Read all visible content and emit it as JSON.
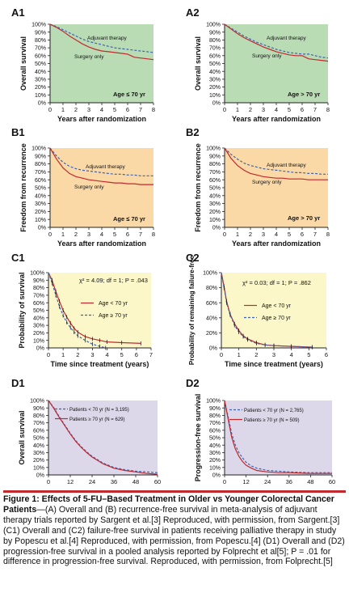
{
  "figure": {
    "caption_title": "Figure 1: Effects of 5-FU–Based Treatment in Older vs Younger Colorectal Cancer Patients",
    "caption_body": "—(A) Overall and (B) recurrence-free survival in meta-analysis of adjuvant therapy trials reported by Sargent et al.[3] Reproduced, with permission, from Sargent.[3] (C1) Overall and (C2) failure-free survival in patients receiving palliative therapy in study by Popescu et al.[4] Reproduced, with permission, from Popescu.[4] (D1) Overall and (D2) progression-free survival in a pooled analysis reported by Folprecht et al[5]; P = .01 for difference in progression-free survival. Reproduced, with permission, from Folprecht.[5]"
  },
  "colors": {
    "red": "#c3282d",
    "blue": "#3d64b4",
    "green": "#b9dcb4",
    "orange": "#fbd9a6",
    "yellow": "#fbf7c9",
    "lavender": "#dcd7e9"
  },
  "chart_data": [
    {
      "id": "A1",
      "type": "line",
      "panel_label": "A1",
      "bg": "green",
      "ylabel": "Overall survival",
      "xlabel": "Years after randomization",
      "xlim": [
        0,
        8
      ],
      "ylim": [
        0,
        100
      ],
      "xticks": [
        0,
        1,
        2,
        3,
        4,
        5,
        6,
        7,
        8
      ],
      "yticks": [
        0,
        10,
        20,
        30,
        40,
        50,
        60,
        70,
        80,
        90,
        100
      ],
      "ytick_suffix": "%",
      "annotation": "Age ≤ 70 yr",
      "series": [
        {
          "name": "Adjuvant therapy",
          "color": "blue",
          "dash": true,
          "x": [
            0,
            0.5,
            1,
            1.5,
            2,
            2.5,
            3,
            3.5,
            4,
            4.5,
            5,
            5.5,
            6,
            6.5,
            7,
            7.5,
            8
          ],
          "y": [
            100,
            97,
            93,
            89,
            85,
            81,
            78,
            76,
            74,
            72,
            70,
            69,
            68,
            67,
            66,
            65,
            64
          ]
        },
        {
          "name": "Surgery only",
          "color": "red",
          "dash": false,
          "x": [
            0,
            0.5,
            1,
            1.5,
            2,
            2.5,
            3,
            3.5,
            4,
            4.5,
            5,
            5.5,
            6,
            6.5,
            7,
            7.5,
            8
          ],
          "y": [
            100,
            96,
            91,
            85,
            80,
            75,
            71,
            68,
            66,
            65,
            64,
            63,
            62,
            58,
            57,
            56,
            55
          ]
        }
      ]
    },
    {
      "id": "A2",
      "type": "line",
      "panel_label": "A2",
      "bg": "green",
      "ylabel": "Overall survival",
      "xlabel": "Years after randomization",
      "xlim": [
        0,
        8
      ],
      "ylim": [
        0,
        100
      ],
      "xticks": [
        0,
        1,
        2,
        3,
        4,
        5,
        6,
        7,
        8
      ],
      "yticks": [
        0,
        10,
        20,
        30,
        40,
        50,
        60,
        70,
        80,
        90,
        100
      ],
      "ytick_suffix": "%",
      "annotation": "Age > 70 yr",
      "series": [
        {
          "name": "Adjuvant therapy",
          "color": "blue",
          "dash": true,
          "x": [
            0,
            0.5,
            1,
            1.5,
            2,
            2.5,
            3,
            3.5,
            4,
            4.5,
            5,
            5.5,
            6,
            6.5,
            7,
            7.5,
            8
          ],
          "y": [
            100,
            95,
            90,
            85,
            81,
            77,
            74,
            71,
            68,
            66,
            64,
            63,
            62,
            62,
            60,
            58,
            57
          ]
        },
        {
          "name": "Surgery only",
          "color": "red",
          "dash": false,
          "x": [
            0,
            0.5,
            1,
            1.5,
            2,
            2.5,
            3,
            3.5,
            4,
            4.5,
            5,
            5.5,
            6,
            6.5,
            7,
            7.5,
            8
          ],
          "y": [
            100,
            94,
            88,
            83,
            79,
            75,
            71,
            68,
            65,
            63,
            61,
            60,
            60,
            56,
            55,
            54,
            53
          ]
        }
      ]
    },
    {
      "id": "B1",
      "type": "line",
      "panel_label": "B1",
      "bg": "orange",
      "ylabel": "Freedom from recurrence",
      "xlabel": "Years after randomization",
      "xlim": [
        0,
        8
      ],
      "ylim": [
        0,
        100
      ],
      "xticks": [
        0,
        1,
        2,
        3,
        4,
        5,
        6,
        7,
        8
      ],
      "yticks": [
        0,
        10,
        20,
        30,
        40,
        50,
        60,
        70,
        80,
        90,
        100
      ],
      "ytick_suffix": "%",
      "annotation": "Age ≤ 70 yr",
      "series": [
        {
          "name": "Adjuvant therapy",
          "color": "blue",
          "dash": true,
          "x": [
            0,
            0.5,
            1,
            1.5,
            2,
            2.5,
            3,
            3.5,
            4,
            4.5,
            5,
            5.5,
            6,
            6.5,
            7,
            7.5,
            8
          ],
          "y": [
            100,
            90,
            82,
            77,
            74,
            72,
            71,
            70,
            69,
            68,
            67,
            67,
            66,
            66,
            65,
            65,
            65
          ]
        },
        {
          "name": "Surgery only",
          "color": "red",
          "dash": false,
          "x": [
            0,
            0.5,
            1,
            1.5,
            2,
            2.5,
            3,
            3.5,
            4,
            4.5,
            5,
            5.5,
            6,
            6.5,
            7,
            7.5,
            8
          ],
          "y": [
            100,
            86,
            75,
            68,
            64,
            62,
            60,
            59,
            58,
            57,
            56,
            56,
            55,
            55,
            54,
            54,
            54
          ]
        }
      ]
    },
    {
      "id": "B2",
      "type": "line",
      "panel_label": "B2",
      "bg": "orange",
      "ylabel": "Freedom from recurrence",
      "xlabel": "Years after randomization",
      "xlim": [
        0,
        8
      ],
      "ylim": [
        0,
        100
      ],
      "xticks": [
        0,
        1,
        2,
        3,
        4,
        5,
        6,
        7,
        8
      ],
      "yticks": [
        0,
        10,
        20,
        30,
        40,
        50,
        60,
        70,
        80,
        90,
        100
      ],
      "ytick_suffix": "%",
      "annotation": "Age > 70 yr",
      "series": [
        {
          "name": "Adjuvant therapy",
          "color": "blue",
          "dash": true,
          "x": [
            0,
            0.5,
            1,
            1.5,
            2,
            2.5,
            3,
            3.5,
            4,
            4.5,
            5,
            5.5,
            6,
            6.5,
            7,
            7.5,
            8
          ],
          "y": [
            100,
            92,
            86,
            81,
            78,
            76,
            74,
            73,
            72,
            71,
            70,
            69,
            69,
            68,
            68,
            67,
            67
          ]
        },
        {
          "name": "Surgery only",
          "color": "red",
          "dash": false,
          "x": [
            0,
            0.5,
            1,
            1.5,
            2,
            2.5,
            3,
            3.5,
            4,
            4.5,
            5,
            5.5,
            6,
            6.5,
            7,
            7.5,
            8
          ],
          "y": [
            100,
            87,
            78,
            72,
            68,
            66,
            64,
            63,
            62,
            62,
            61,
            61,
            61,
            60,
            60,
            60,
            60
          ]
        }
      ]
    },
    {
      "id": "C1",
      "type": "line",
      "panel_label": "C1",
      "bg": "yellow",
      "ylabel": "Probability of survival",
      "xlabel": "Time since treatment (years)",
      "xlim": [
        0,
        7
      ],
      "ylim": [
        0,
        100
      ],
      "xticks": [
        0,
        1,
        2,
        3,
        4,
        5,
        6,
        7
      ],
      "yticks": [
        0,
        10,
        20,
        30,
        40,
        50,
        60,
        70,
        80,
        90,
        100
      ],
      "ytick_suffix": "%",
      "annotation": "χ² = 4.09; df = 1; P = .043",
      "series": [
        {
          "name": "Age < 70 yr",
          "color": "red",
          "dash": false,
          "x": [
            0,
            0.25,
            0.5,
            0.75,
            1,
            1.25,
            1.5,
            1.75,
            2,
            2.5,
            3,
            3.5,
            4,
            5,
            6.3
          ],
          "y": [
            100,
            90,
            75,
            62,
            50,
            41,
            33,
            26,
            21,
            15,
            12,
            10,
            8,
            7,
            6
          ]
        },
        {
          "name": "Age ≥ 70 yr",
          "color": "blue",
          "dash": true,
          "x": [
            0,
            0.25,
            0.5,
            0.75,
            1,
            1.25,
            1.5,
            1.75,
            2,
            2.5,
            3,
            3.5,
            3.9
          ],
          "y": [
            100,
            86,
            70,
            55,
            43,
            34,
            27,
            21,
            16,
            10,
            5,
            2,
            0
          ]
        }
      ]
    },
    {
      "id": "C2",
      "type": "line",
      "panel_label": "C2",
      "bg": "yellow",
      "ylabel": "Probability of remaining failure-free",
      "xlabel": "Time since treatment (years)",
      "xlim": [
        0,
        6
      ],
      "ylim": [
        0,
        100
      ],
      "xticks": [
        0,
        1,
        2,
        3,
        4,
        5,
        6
      ],
      "yticks": [
        0,
        20,
        40,
        60,
        80,
        100
      ],
      "ytick_suffix": "%",
      "annotation": "χ² = 0.03; df = 1; P = .862",
      "series": [
        {
          "name": "Age < 70 yr",
          "color": "red",
          "dash": false,
          "x": [
            0,
            0.15,
            0.3,
            0.5,
            0.75,
            1,
            1.25,
            1.5,
            2,
            2.5,
            3,
            4,
            5.2
          ],
          "y": [
            100,
            82,
            62,
            45,
            32,
            23,
            16,
            12,
            7,
            4,
            3,
            2,
            1
          ]
        },
        {
          "name": "Age ≥ 70 yr",
          "color": "blue",
          "dash": true,
          "x": [
            0,
            0.15,
            0.3,
            0.5,
            0.75,
            1,
            1.25,
            1.5,
            2,
            2.5,
            3,
            4,
            5.2
          ],
          "y": [
            100,
            80,
            60,
            44,
            30,
            21,
            15,
            11,
            6,
            4,
            3,
            2,
            1
          ]
        }
      ]
    },
    {
      "id": "D1",
      "type": "line",
      "panel_label": "D1",
      "bg": "lavender",
      "ylabel": "Overall survival",
      "xlabel": "Months",
      "xlim": [
        0,
        60
      ],
      "ylim": [
        0,
        100
      ],
      "xticks": [
        0,
        12,
        24,
        36,
        48,
        60
      ],
      "yticks": [
        0,
        10,
        20,
        30,
        40,
        50,
        60,
        70,
        80,
        90,
        100
      ],
      "ytick_suffix": "%",
      "annotation": "",
      "series": [
        {
          "name": "Patients < 70 yr (N = 3,195)",
          "color": "blue",
          "dash": true,
          "x": [
            0,
            3,
            6,
            9,
            12,
            15,
            18,
            21,
            24,
            30,
            36,
            42,
            48,
            54,
            60
          ],
          "y": [
            100,
            90,
            78,
            67,
            56,
            46,
            38,
            31,
            25,
            16,
            10,
            7,
            5,
            4,
            3
          ]
        },
        {
          "name": "Patients ≥ 70 yr (N = 629)",
          "color": "red",
          "dash": false,
          "x": [
            0,
            3,
            6,
            9,
            12,
            15,
            18,
            21,
            24,
            30,
            36,
            42,
            48,
            54,
            60
          ],
          "y": [
            100,
            89,
            77,
            66,
            55,
            45,
            37,
            30,
            24,
            15,
            9,
            6,
            4,
            2,
            1
          ]
        }
      ]
    },
    {
      "id": "D2",
      "type": "line",
      "panel_label": "D2",
      "bg": "lavender",
      "ylabel": "Progression-free survival",
      "xlabel": "Months",
      "xlim": [
        0,
        60
      ],
      "ylim": [
        0,
        100
      ],
      "xticks": [
        0,
        12,
        24,
        36,
        48,
        60
      ],
      "yticks": [
        0,
        10,
        20,
        30,
        40,
        50,
        60,
        70,
        80,
        90,
        100
      ],
      "ytick_suffix": "%",
      "annotation": "",
      "series": [
        {
          "name": "Patients < 70 yr (N = 2,765)",
          "color": "blue",
          "dash": true,
          "x": [
            0,
            2,
            4,
            6,
            8,
            10,
            12,
            15,
            18,
            24,
            30,
            36,
            48,
            60
          ],
          "y": [
            100,
            78,
            55,
            40,
            30,
            23,
            17,
            12,
            9,
            6,
            5,
            4,
            3,
            3
          ]
        },
        {
          "name": "Patients ≥ 70 yr (N = 509)",
          "color": "red",
          "dash": false,
          "x": [
            0,
            2,
            4,
            6,
            8,
            10,
            12,
            15,
            18,
            24,
            30,
            36,
            48,
            60
          ],
          "y": [
            100,
            75,
            50,
            35,
            25,
            18,
            13,
            9,
            6,
            4,
            3,
            3,
            2,
            2
          ]
        }
      ]
    }
  ]
}
